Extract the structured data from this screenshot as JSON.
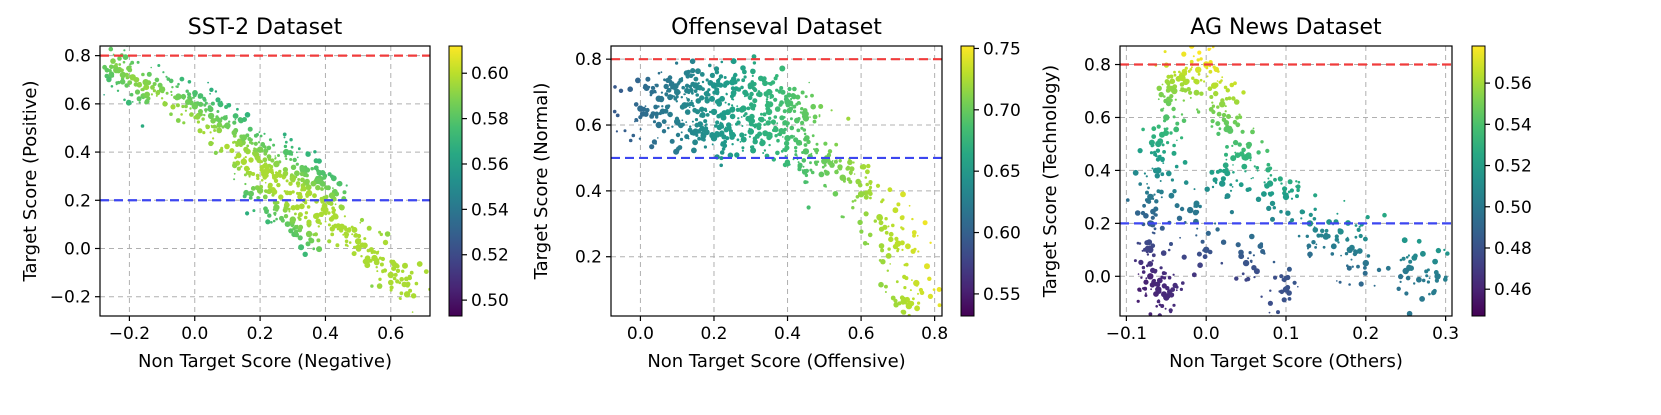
{
  "chart_data": [
    {
      "type": "scatter",
      "title": "SST-2 Dataset",
      "xlabel": "Non Target Score (Negative)",
      "ylabel": "Target Score (Positive)",
      "xlim": [
        -0.29,
        0.72
      ],
      "ylim": [
        -0.28,
        0.84
      ],
      "xticks": [
        -0.2,
        0.0,
        0.2,
        0.4,
        0.6
      ],
      "xtick_labels": [
        "−0.2",
        "0.0",
        "0.2",
        "0.4",
        "0.6"
      ],
      "yticks": [
        -0.2,
        0.0,
        0.2,
        0.4,
        0.6,
        0.8
      ],
      "ytick_labels": [
        "−0.2",
        "0.0",
        "0.2",
        "0.4",
        "0.6",
        "0.8"
      ],
      "hlines": [
        {
          "y": 0.8,
          "color": "#f03c3c"
        },
        {
          "y": 0.2,
          "color": "#3c46f0"
        }
      ],
      "colorbar": {
        "range": [
          0.493,
          0.612
        ],
        "ticks": [
          0.5,
          0.52,
          0.54,
          0.56,
          0.58,
          0.6
        ],
        "tick_labels": [
          "0.50",
          "0.52",
          "0.54",
          "0.56",
          "0.58",
          "0.60"
        ]
      },
      "grid": true,
      "colormap": "viridis",
      "points": [
        [
          -0.24,
          0.74
        ],
        [
          -0.22,
          0.72
        ],
        [
          -0.19,
          0.71
        ],
        [
          -0.15,
          0.69
        ],
        [
          -0.1,
          0.66
        ],
        [
          -0.05,
          0.63
        ],
        [
          0.0,
          0.59
        ],
        [
          0.05,
          0.55
        ],
        [
          0.1,
          0.51
        ],
        [
          0.15,
          0.46
        ],
        [
          0.2,
          0.41
        ],
        [
          0.25,
          0.35
        ],
        [
          0.3,
          0.29
        ],
        [
          0.35,
          0.23
        ],
        [
          0.4,
          0.16
        ],
        [
          0.45,
          0.09
        ],
        [
          0.5,
          0.03
        ],
        [
          0.55,
          -0.04
        ],
        [
          0.6,
          -0.11
        ],
        [
          0.65,
          -0.19
        ],
        [
          0.2,
          0.24
        ],
        [
          0.25,
          0.17
        ],
        [
          0.3,
          0.12
        ],
        [
          0.35,
          0.06
        ],
        [
          0.28,
          0.4
        ],
        [
          0.33,
          0.33
        ],
        [
          0.38,
          0.28
        ],
        [
          0.22,
          0.32
        ],
        [
          0.15,
          0.36
        ],
        [
          0.42,
          0.22
        ]
      ]
    },
    {
      "type": "scatter",
      "title": "Offenseval Dataset",
      "xlabel": "Non Target Score (Offensive)",
      "ylabel": "Target Score (Normal)",
      "xlim": [
        -0.08,
        0.82
      ],
      "ylim": [
        0.02,
        0.84
      ],
      "xticks": [
        0.0,
        0.2,
        0.4,
        0.6,
        0.8
      ],
      "xtick_labels": [
        "0.0",
        "0.2",
        "0.4",
        "0.6",
        "0.8"
      ],
      "yticks": [
        0.2,
        0.4,
        0.6,
        0.8
      ],
      "ytick_labels": [
        "0.2",
        "0.4",
        "0.6",
        "0.8"
      ],
      "hlines": [
        {
          "y": 0.8,
          "color": "#f03c3c"
        },
        {
          "y": 0.5,
          "color": "#3c46f0"
        }
      ],
      "colorbar": {
        "range": [
          0.532,
          0.752
        ],
        "ticks": [
          0.55,
          0.6,
          0.65,
          0.7,
          0.75
        ],
        "tick_labels": [
          "0.55",
          "0.60",
          "0.65",
          "0.70",
          "0.75"
        ]
      },
      "grid": true,
      "colormap": "viridis",
      "points": [
        [
          0.0,
          0.65
        ],
        [
          0.05,
          0.68
        ],
        [
          0.1,
          0.7
        ],
        [
          0.15,
          0.72
        ],
        [
          0.2,
          0.72
        ],
        [
          0.25,
          0.73
        ],
        [
          0.3,
          0.72
        ],
        [
          0.35,
          0.7
        ],
        [
          0.4,
          0.67
        ],
        [
          0.45,
          0.62
        ],
        [
          0.1,
          0.61
        ],
        [
          0.15,
          0.58
        ],
        [
          0.2,
          0.56
        ],
        [
          0.25,
          0.57
        ],
        [
          0.3,
          0.58
        ],
        [
          0.35,
          0.57
        ],
        [
          0.4,
          0.56
        ],
        [
          0.45,
          0.52
        ],
        [
          0.5,
          0.49
        ],
        [
          0.55,
          0.44
        ],
        [
          0.6,
          0.39
        ],
        [
          0.65,
          0.32
        ],
        [
          0.7,
          0.24
        ],
        [
          0.75,
          0.12
        ],
        [
          0.2,
          0.64
        ],
        [
          0.28,
          0.65
        ],
        [
          0.35,
          0.64
        ],
        [
          0.12,
          0.66
        ],
        [
          0.05,
          0.6
        ],
        [
          0.73,
          0.05
        ]
      ]
    },
    {
      "type": "scatter",
      "title": "AG News Dataset",
      "xlabel": "Non Target Score (Others)",
      "ylabel": "Target Score (Technology)",
      "xlim": [
        -0.108,
        0.308
      ],
      "ylim": [
        -0.15,
        0.87
      ],
      "xticks": [
        -0.1,
        0.0,
        0.1,
        0.2,
        0.3
      ],
      "xtick_labels": [
        "−0.1",
        "0.0",
        "0.1",
        "0.2",
        "0.3"
      ],
      "yticks": [
        0.0,
        0.2,
        0.4,
        0.6,
        0.8
      ],
      "ytick_labels": [
        "0.0",
        "0.2",
        "0.4",
        "0.6",
        "0.8"
      ],
      "hlines": [
        {
          "y": 0.8,
          "color": "#f03c3c"
        },
        {
          "y": 0.2,
          "color": "#3c46f0"
        }
      ],
      "colorbar": {
        "range": [
          0.447,
          0.578
        ],
        "ticks": [
          0.46,
          0.48,
          0.5,
          0.52,
          0.54,
          0.56
        ],
        "tick_labels": [
          "0.46",
          "0.48",
          "0.50",
          "0.52",
          "0.54",
          "0.56"
        ]
      },
      "grid": true,
      "colormap": "viridis",
      "points": [
        [
          -0.07,
          0.2
        ],
        [
          -0.07,
          0.3
        ],
        [
          -0.07,
          0.1
        ],
        [
          -0.07,
          0.0
        ],
        [
          -0.06,
          0.4
        ],
        [
          -0.06,
          0.5
        ],
        [
          -0.05,
          0.6
        ],
        [
          -0.04,
          0.7
        ],
        [
          -0.03,
          0.75
        ],
        [
          -0.01,
          0.78
        ],
        [
          0.0,
          0.8
        ],
        [
          0.01,
          0.72
        ],
        [
          0.02,
          0.65
        ],
        [
          0.03,
          0.55
        ],
        [
          0.05,
          0.45
        ],
        [
          0.08,
          0.35
        ],
        [
          0.1,
          0.3
        ],
        [
          0.13,
          0.2
        ],
        [
          0.15,
          0.15
        ],
        [
          0.18,
          0.1
        ],
        [
          0.2,
          0.05
        ],
        [
          0.25,
          0.02
        ],
        [
          0.29,
          0.0
        ],
        [
          -0.06,
          -0.05
        ],
        [
          -0.05,
          -0.08
        ],
        [
          0.0,
          0.1
        ],
        [
          0.05,
          0.05
        ],
        [
          -0.02,
          0.25
        ],
        [
          0.02,
          0.35
        ],
        [
          0.1,
          -0.05
        ]
      ]
    }
  ]
}
